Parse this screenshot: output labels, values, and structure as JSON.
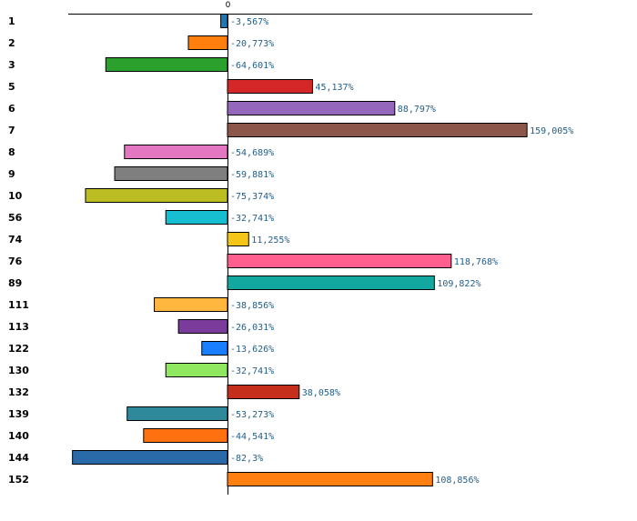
{
  "chart_data": {
    "type": "bar",
    "orientation": "horizontal",
    "title": "",
    "xlabel": "",
    "ylabel": "",
    "zero_label": "0",
    "value_suffix": "%",
    "decimal_separator": ",",
    "xlim": [
      -82.3,
      159.005
    ],
    "grid": false,
    "legend": "none",
    "categories": [
      "1",
      "2",
      "3",
      "5",
      "6",
      "7",
      "8",
      "9",
      "10",
      "56",
      "74",
      "76",
      "89",
      "111",
      "113",
      "122",
      "130",
      "132",
      "139",
      "140",
      "144",
      "152"
    ],
    "values": [
      -3.567,
      -20.773,
      -64.601,
      45.137,
      88.797,
      159.005,
      -54.689,
      -59.881,
      -75.374,
      -32.741,
      11.255,
      118.768,
      109.822,
      -38.856,
      -26.031,
      -13.626,
      -32.741,
      38.058,
      -53.273,
      -44.541,
      -82.3,
      108.856
    ],
    "value_labels": [
      "-3,567%",
      "-20,773%",
      "-64,601%",
      "45,137%",
      "88,797%",
      "159,005%",
      "-54,689%",
      "-59,881%",
      "-75,374%",
      "-32,741%",
      "11,255%",
      "118,768%",
      "109,822%",
      "-38,856%",
      "-26,031%",
      "-13,626%",
      "-32,741%",
      "38,058%",
      "-53,273%",
      "-44,541%",
      "-82,3%",
      "108,856%"
    ],
    "colors": [
      "#1f77b4",
      "#ff7f0e",
      "#2ca02c",
      "#d62728",
      "#9467bd",
      "#8c564b",
      "#e377c2",
      "#7f7f7f",
      "#bcbd22",
      "#17becf",
      "#f5c518",
      "#ff5f8f",
      "#12a8a0",
      "#ffb740",
      "#7a3b9a",
      "#1a7fff",
      "#90e860",
      "#c42e1b",
      "#2e8a9a",
      "#ff7010",
      "#2a6aa8",
      "#ff8010"
    ]
  }
}
